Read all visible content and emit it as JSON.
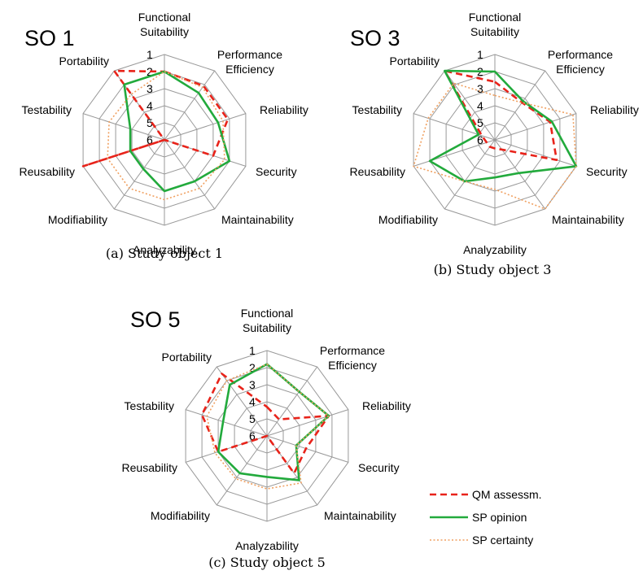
{
  "chart_data": {
    "type": "radar",
    "axes": [
      "Functional Suitability",
      "Performance Efficiency",
      "Reliability",
      "Security",
      "Maintainability",
      "Analyzability",
      "Modifiability",
      "Reusability",
      "Testability",
      "Portability"
    ],
    "rlim": [
      1,
      6
    ],
    "radial_ticks": [
      "1",
      "2",
      "3",
      "4",
      "5",
      "6"
    ],
    "grid": true,
    "legend": {
      "placement": "bottom-right",
      "entries": [
        {
          "label": "QM assessm.",
          "color": "#e8231a",
          "style": "dashed"
        },
        {
          "label": "SP opinion",
          "color": "#22aa3c",
          "style": "solid"
        },
        {
          "label": "SP certainty",
          "color": "#f0a060",
          "style": "dotted"
        }
      ]
    },
    "colors": {
      "qm": "#e8231a",
      "sp_opinion": "#22aa3c",
      "sp_certainty": "#f0a060",
      "grid": "#999999"
    },
    "charts": [
      {
        "title": "SO 1",
        "caption": "(a) Study object 1",
        "series": [
          {
            "name": "QM assessm.",
            "values": [
              2,
              2.1,
              2.1,
              3,
              6,
              6,
              6,
              1,
              6,
              1
            ]
          },
          {
            "name": "SP opinion",
            "values": [
              2,
              2.6,
              2.7,
              2,
              3,
              3,
              3.9,
              3.9,
              3.9,
              2
            ]
          },
          {
            "name": "SP certainty",
            "values": [
              2,
              2.2,
              2.4,
              2.3,
              2.5,
              2.5,
              2.5,
              2.5,
              2.6,
              2.7
            ]
          }
        ]
      },
      {
        "title": "SO 3",
        "caption": "(b) Study object 3",
        "series": [
          {
            "name": "QM assessm.",
            "values": [
              2.6,
              3.3,
              2.6,
              2.2,
              5.3,
              5.5,
              5.5,
              5.5,
              5.2,
              1
            ]
          },
          {
            "name": "SP opinion",
            "values": [
              2,
              3.2,
              2.5,
              1,
              3.6,
              3.8,
              3,
              2,
              5,
              1
            ]
          },
          {
            "name": "SP certainty",
            "values": [
              3.4,
              3.3,
              1.2,
              1,
              1,
              3.1,
              3,
              1,
              1.9,
              1.9
            ]
          }
        ]
      },
      {
        "title": "SO 5",
        "caption": "(c) Study object 5",
        "series": [
          {
            "name": "QM assessm.",
            "values": [
              4.3,
              4.8,
              2.2,
              3.6,
              3.3,
              6,
              6,
              3,
              2,
              1.5
            ]
          },
          {
            "name": "SP opinion",
            "values": [
              1.8,
              2.8,
              2.2,
              4.2,
              2.8,
              3.6,
              3.3,
              3,
              3.3,
              2.3
            ]
          },
          {
            "name": "SP certainty",
            "values": [
              1.8,
              2.8,
              2.2,
              4.2,
              2.6,
              2.9,
              2.9,
              2.8,
              2.3,
              2
            ]
          }
        ]
      }
    ]
  }
}
